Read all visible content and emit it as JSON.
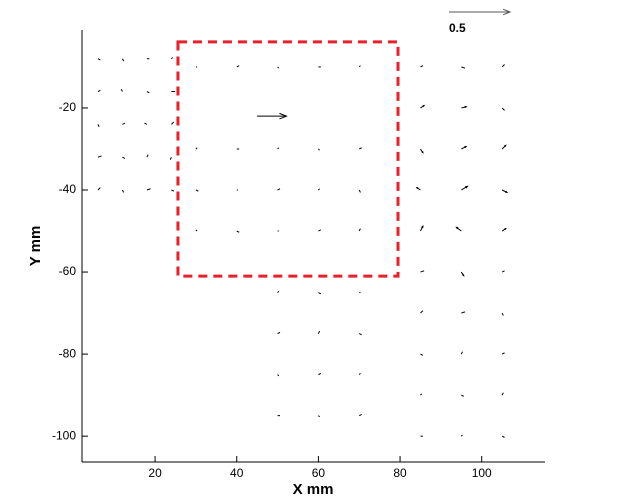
{
  "chart_data": {
    "type": "quiver",
    "xlabel": "X mm",
    "ylabel": "Y mm",
    "xlim": [
      2.1,
      115.5
    ],
    "ylim": [
      -106.3,
      -1
    ],
    "xticks": [
      20,
      40,
      60,
      80,
      100
    ],
    "yticks": [
      -20,
      -40,
      -60,
      -80,
      -100
    ],
    "reference_vector": 0.5,
    "color": "#000000",
    "highlight_box": {
      "xlim": [
        25.6,
        79.5
      ],
      "ylim": [
        -61,
        -3.9
      ],
      "color": "#e8202a"
    },
    "x": [
      6,
      12,
      18,
      24,
      6,
      12,
      18,
      24,
      6,
      12,
      18,
      24,
      6,
      12,
      18,
      24,
      6,
      12,
      18,
      24,
      30,
      40,
      50,
      60,
      70,
      30,
      40,
      50,
      60,
      70,
      30,
      40,
      50,
      60,
      70,
      30,
      40,
      50,
      60,
      70,
      45,
      85,
      95,
      105,
      85,
      95,
      105,
      85,
      95,
      105,
      85,
      95,
      105,
      85,
      95,
      105,
      85,
      95,
      105,
      85,
      95,
      105,
      85,
      95,
      105,
      85,
      95,
      105,
      85,
      95,
      105,
      50,
      60,
      70,
      50,
      60,
      70,
      50,
      60,
      70,
      50,
      60,
      70
    ],
    "y": [
      -8,
      -8,
      -8,
      -8,
      -16,
      -16,
      -16,
      -16,
      -24,
      -24,
      -24,
      -24,
      -32,
      -32,
      -32,
      -32,
      -40,
      -40,
      -40,
      -40,
      -10,
      -10,
      -10,
      -10,
      -10,
      -30,
      -30,
      -30,
      -30,
      -30,
      -40,
      -40,
      -40,
      -40,
      -40,
      -50,
      -50,
      -50,
      -50,
      -50,
      -22,
      -10,
      -10,
      -10,
      -20,
      -20,
      -20,
      -30,
      -30,
      -30,
      -40,
      -40,
      -40,
      -50,
      -50,
      -50,
      -60,
      -60,
      -60,
      -70,
      -70,
      -70,
      -80,
      -80,
      -80,
      -90,
      -90,
      -90,
      -100,
      -100,
      -100,
      -65,
      -65,
      -65,
      -75,
      -75,
      -75,
      -85,
      -85,
      -85,
      -95,
      -95,
      -95
    ],
    "u": [
      0.02,
      0.01,
      0.02,
      0.01,
      0.02,
      -0.01,
      0.02,
      0.03,
      0.01,
      0.02,
      -0.02,
      0.02,
      0.03,
      0.02,
      0.01,
      -0.01,
      0.02,
      0.01,
      0.03,
      0.02,
      0.01,
      0.02,
      0.01,
      0.02,
      0.01,
      0.01,
      0.02,
      0.01,
      0.01,
      0.02,
      0.02,
      0.01,
      0.02,
      0.01,
      0.01,
      0.01,
      0.02,
      0.01,
      0.02,
      0.01,
      0.24,
      0.02,
      0.03,
      0.02,
      0.03,
      0.04,
      0.02,
      0.02,
      0.04,
      0.03,
      -0.03,
      0.05,
      0.04,
      0.02,
      -0.04,
      0.03,
      0.03,
      0.02,
      0.02,
      0.02,
      0.03,
      0.01,
      0.02,
      0.01,
      0.02,
      0.01,
      0.02,
      0.01,
      0.02,
      0.01,
      0.02,
      0.01,
      0.02,
      0.01,
      0.02,
      0.01,
      0.02,
      0.01,
      0.02,
      0.01,
      0.02,
      0.01,
      0.02
    ],
    "v": [
      -0.01,
      -0.02,
      0,
      0.01,
      0.01,
      0.02,
      -0.01,
      0,
      -0.02,
      0.01,
      0.01,
      0.02,
      0.01,
      -0.01,
      0.02,
      -0.02,
      0.02,
      -0.02,
      0.01,
      -0.01,
      0,
      0.01,
      -0.01,
      0,
      0.01,
      0.01,
      0,
      0.01,
      -0.01,
      0.01,
      -0.01,
      0,
      0.01,
      0.01,
      -0.02,
      0.01,
      -0.01,
      0,
      0.01,
      0.02,
      0,
      0.01,
      -0.01,
      0.02,
      0.02,
      0.01,
      -0.02,
      -0.03,
      0.02,
      0.03,
      0.02,
      0.03,
      -0.02,
      0.04,
      0.03,
      0.02,
      0.01,
      -0.03,
      0.01,
      0.02,
      0.01,
      -0.02,
      -0.01,
      0.02,
      0.01,
      0.01,
      -0.01,
      0.02,
      0,
      0.01,
      -0.01,
      0.01,
      -0.01,
      0,
      0.01,
      0.02,
      -0.01,
      -0.01,
      0.01,
      0.01,
      0,
      -0.01,
      0.01
    ]
  }
}
